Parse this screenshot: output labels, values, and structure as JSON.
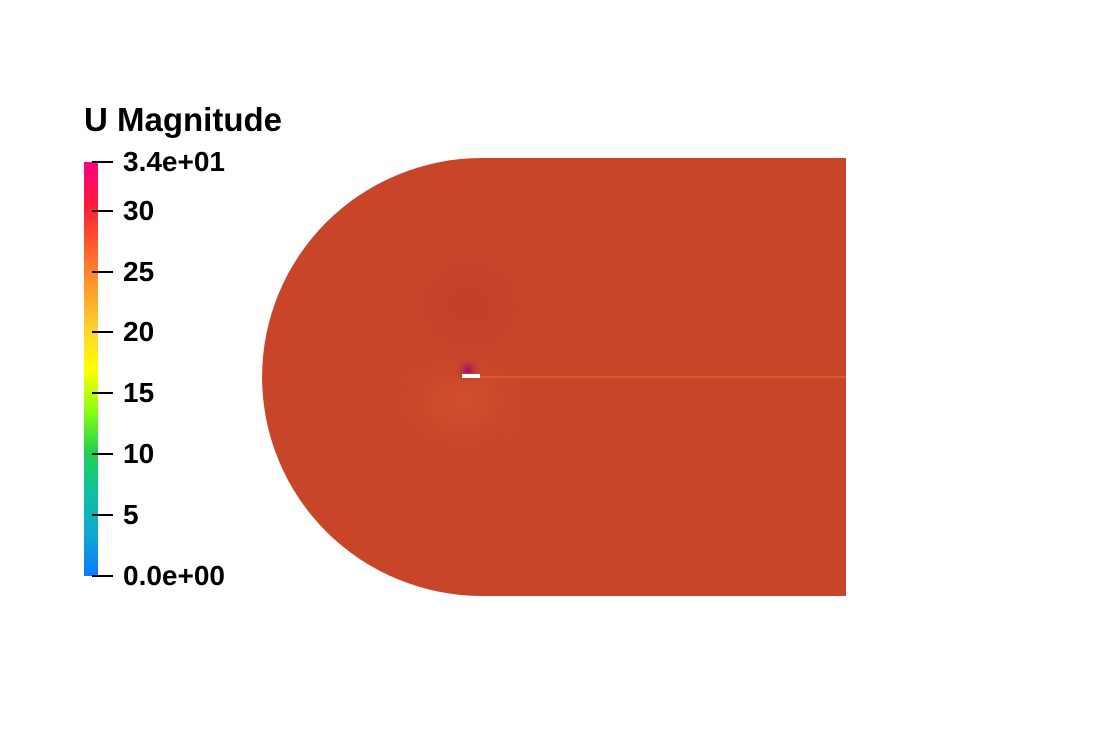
{
  "scalar_bar": {
    "title": "U Magnitude",
    "ticks": [
      {
        "label": "3.4e+01",
        "value": 34
      },
      {
        "label": "30",
        "value": 30
      },
      {
        "label": "25",
        "value": 25
      },
      {
        "label": "20",
        "value": 20
      },
      {
        "label": "15",
        "value": 15
      },
      {
        "label": "10",
        "value": 10
      },
      {
        "label": "5",
        "value": 5
      },
      {
        "label": "0.0e+00",
        "value": 0
      }
    ],
    "range": [
      0,
      34
    ],
    "colormap": [
      "#ff0080",
      "#ff1a3a",
      "#ff5a2a",
      "#ff9a2a",
      "#ffd030",
      "#ffff00",
      "#8cff10",
      "#20d050",
      "#10c0a0",
      "#10a8d0",
      "#0a7aff"
    ]
  },
  "field": {
    "fill_color": "#c9452a",
    "wake_color": "#d8682e",
    "stagnation_color": "#b01060"
  }
}
